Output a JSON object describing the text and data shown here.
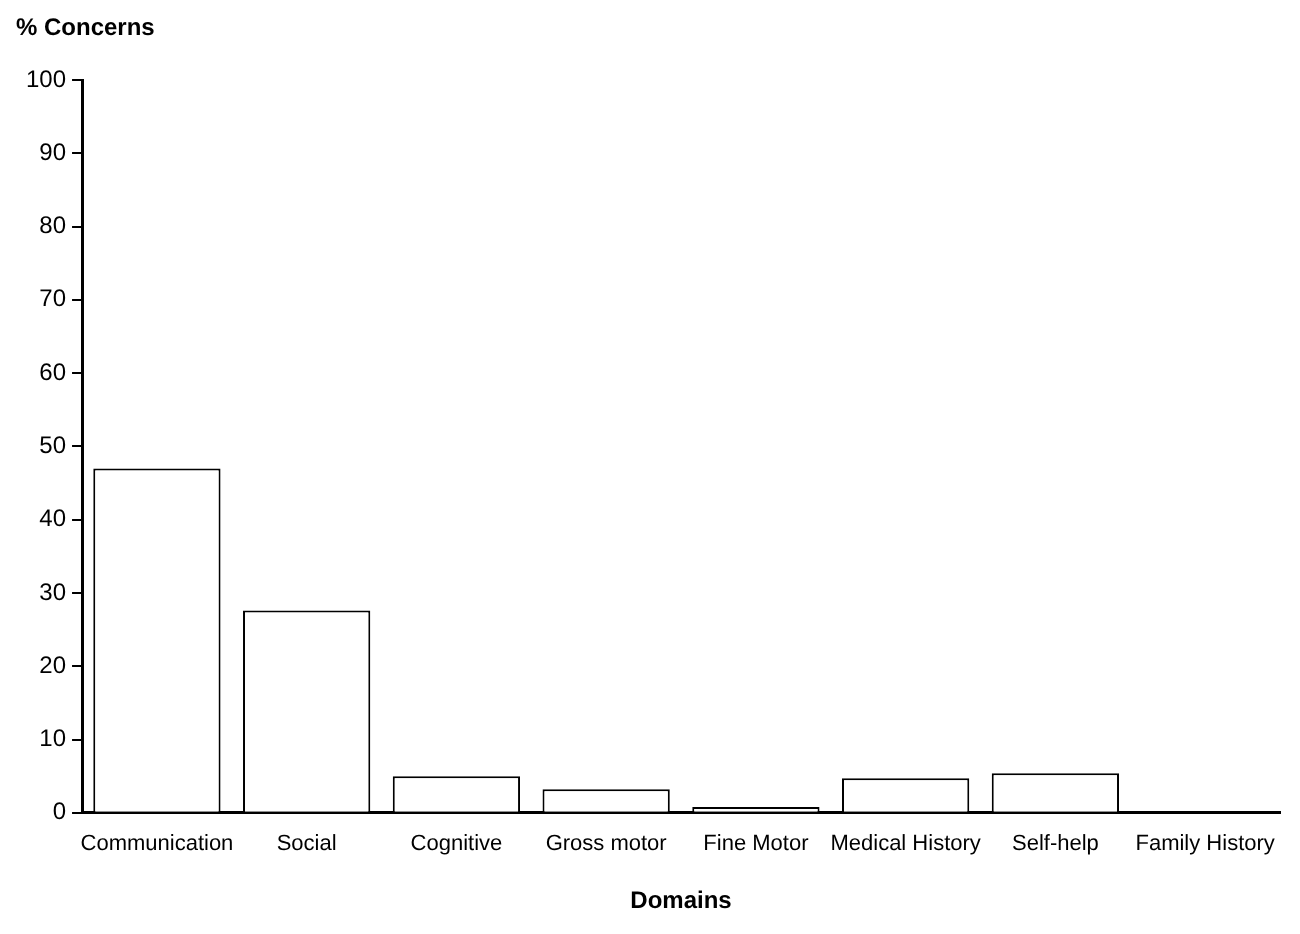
{
  "chart_data": {
    "type": "bar",
    "xlabel": "Domains",
    "ylabel": "% Concerns",
    "categories": [
      "Communication",
      "Social",
      "Cognitive",
      "Gross motor",
      "Fine Motor",
      "Medical History",
      "Self-help",
      "Family History"
    ],
    "values": [
      47,
      27.6,
      5,
      3.2,
      0.8,
      4.7,
      5.4,
      0
    ],
    "color": "#ffffff",
    "ylim": [
      0,
      100
    ],
    "yticks": [
      0,
      10,
      20,
      30,
      40,
      50,
      60,
      70,
      80,
      90,
      100
    ],
    "grid": false,
    "legend": false
  }
}
